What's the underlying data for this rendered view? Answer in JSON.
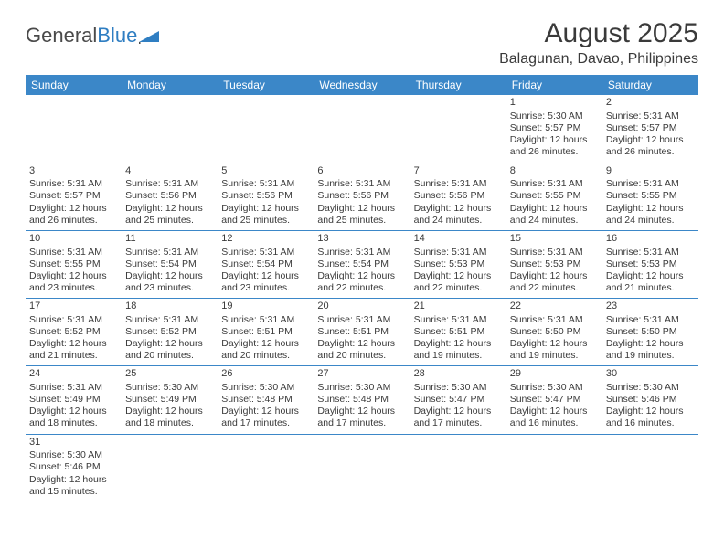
{
  "logo": {
    "general": "General",
    "blue": "Blue"
  },
  "header": {
    "month_title": "August 2025",
    "location": "Balagunan, Davao, Philippines"
  },
  "day_headers": [
    "Sunday",
    "Monday",
    "Tuesday",
    "Wednesday",
    "Thursday",
    "Friday",
    "Saturday"
  ],
  "header_bg": "#3b87c8",
  "header_fg": "#ffffff",
  "rule_color": "#3b87c8",
  "weeks": [
    [
      null,
      null,
      null,
      null,
      null,
      {
        "n": "1",
        "sr": "Sunrise: 5:30 AM",
        "ss": "Sunset: 5:57 PM",
        "d1": "Daylight: 12 hours",
        "d2": "and 26 minutes."
      },
      {
        "n": "2",
        "sr": "Sunrise: 5:31 AM",
        "ss": "Sunset: 5:57 PM",
        "d1": "Daylight: 12 hours",
        "d2": "and 26 minutes."
      }
    ],
    [
      {
        "n": "3",
        "sr": "Sunrise: 5:31 AM",
        "ss": "Sunset: 5:57 PM",
        "d1": "Daylight: 12 hours",
        "d2": "and 26 minutes."
      },
      {
        "n": "4",
        "sr": "Sunrise: 5:31 AM",
        "ss": "Sunset: 5:56 PM",
        "d1": "Daylight: 12 hours",
        "d2": "and 25 minutes."
      },
      {
        "n": "5",
        "sr": "Sunrise: 5:31 AM",
        "ss": "Sunset: 5:56 PM",
        "d1": "Daylight: 12 hours",
        "d2": "and 25 minutes."
      },
      {
        "n": "6",
        "sr": "Sunrise: 5:31 AM",
        "ss": "Sunset: 5:56 PM",
        "d1": "Daylight: 12 hours",
        "d2": "and 25 minutes."
      },
      {
        "n": "7",
        "sr": "Sunrise: 5:31 AM",
        "ss": "Sunset: 5:56 PM",
        "d1": "Daylight: 12 hours",
        "d2": "and 24 minutes."
      },
      {
        "n": "8",
        "sr": "Sunrise: 5:31 AM",
        "ss": "Sunset: 5:55 PM",
        "d1": "Daylight: 12 hours",
        "d2": "and 24 minutes."
      },
      {
        "n": "9",
        "sr": "Sunrise: 5:31 AM",
        "ss": "Sunset: 5:55 PM",
        "d1": "Daylight: 12 hours",
        "d2": "and 24 minutes."
      }
    ],
    [
      {
        "n": "10",
        "sr": "Sunrise: 5:31 AM",
        "ss": "Sunset: 5:55 PM",
        "d1": "Daylight: 12 hours",
        "d2": "and 23 minutes."
      },
      {
        "n": "11",
        "sr": "Sunrise: 5:31 AM",
        "ss": "Sunset: 5:54 PM",
        "d1": "Daylight: 12 hours",
        "d2": "and 23 minutes."
      },
      {
        "n": "12",
        "sr": "Sunrise: 5:31 AM",
        "ss": "Sunset: 5:54 PM",
        "d1": "Daylight: 12 hours",
        "d2": "and 23 minutes."
      },
      {
        "n": "13",
        "sr": "Sunrise: 5:31 AM",
        "ss": "Sunset: 5:54 PM",
        "d1": "Daylight: 12 hours",
        "d2": "and 22 minutes."
      },
      {
        "n": "14",
        "sr": "Sunrise: 5:31 AM",
        "ss": "Sunset: 5:53 PM",
        "d1": "Daylight: 12 hours",
        "d2": "and 22 minutes."
      },
      {
        "n": "15",
        "sr": "Sunrise: 5:31 AM",
        "ss": "Sunset: 5:53 PM",
        "d1": "Daylight: 12 hours",
        "d2": "and 22 minutes."
      },
      {
        "n": "16",
        "sr": "Sunrise: 5:31 AM",
        "ss": "Sunset: 5:53 PM",
        "d1": "Daylight: 12 hours",
        "d2": "and 21 minutes."
      }
    ],
    [
      {
        "n": "17",
        "sr": "Sunrise: 5:31 AM",
        "ss": "Sunset: 5:52 PM",
        "d1": "Daylight: 12 hours",
        "d2": "and 21 minutes."
      },
      {
        "n": "18",
        "sr": "Sunrise: 5:31 AM",
        "ss": "Sunset: 5:52 PM",
        "d1": "Daylight: 12 hours",
        "d2": "and 20 minutes."
      },
      {
        "n": "19",
        "sr": "Sunrise: 5:31 AM",
        "ss": "Sunset: 5:51 PM",
        "d1": "Daylight: 12 hours",
        "d2": "and 20 minutes."
      },
      {
        "n": "20",
        "sr": "Sunrise: 5:31 AM",
        "ss": "Sunset: 5:51 PM",
        "d1": "Daylight: 12 hours",
        "d2": "and 20 minutes."
      },
      {
        "n": "21",
        "sr": "Sunrise: 5:31 AM",
        "ss": "Sunset: 5:51 PM",
        "d1": "Daylight: 12 hours",
        "d2": "and 19 minutes."
      },
      {
        "n": "22",
        "sr": "Sunrise: 5:31 AM",
        "ss": "Sunset: 5:50 PM",
        "d1": "Daylight: 12 hours",
        "d2": "and 19 minutes."
      },
      {
        "n": "23",
        "sr": "Sunrise: 5:31 AM",
        "ss": "Sunset: 5:50 PM",
        "d1": "Daylight: 12 hours",
        "d2": "and 19 minutes."
      }
    ],
    [
      {
        "n": "24",
        "sr": "Sunrise: 5:31 AM",
        "ss": "Sunset: 5:49 PM",
        "d1": "Daylight: 12 hours",
        "d2": "and 18 minutes."
      },
      {
        "n": "25",
        "sr": "Sunrise: 5:30 AM",
        "ss": "Sunset: 5:49 PM",
        "d1": "Daylight: 12 hours",
        "d2": "and 18 minutes."
      },
      {
        "n": "26",
        "sr": "Sunrise: 5:30 AM",
        "ss": "Sunset: 5:48 PM",
        "d1": "Daylight: 12 hours",
        "d2": "and 17 minutes."
      },
      {
        "n": "27",
        "sr": "Sunrise: 5:30 AM",
        "ss": "Sunset: 5:48 PM",
        "d1": "Daylight: 12 hours",
        "d2": "and 17 minutes."
      },
      {
        "n": "28",
        "sr": "Sunrise: 5:30 AM",
        "ss": "Sunset: 5:47 PM",
        "d1": "Daylight: 12 hours",
        "d2": "and 17 minutes."
      },
      {
        "n": "29",
        "sr": "Sunrise: 5:30 AM",
        "ss": "Sunset: 5:47 PM",
        "d1": "Daylight: 12 hours",
        "d2": "and 16 minutes."
      },
      {
        "n": "30",
        "sr": "Sunrise: 5:30 AM",
        "ss": "Sunset: 5:46 PM",
        "d1": "Daylight: 12 hours",
        "d2": "and 16 minutes."
      }
    ],
    [
      {
        "n": "31",
        "sr": "Sunrise: 5:30 AM",
        "ss": "Sunset: 5:46 PM",
        "d1": "Daylight: 12 hours",
        "d2": "and 15 minutes."
      },
      null,
      null,
      null,
      null,
      null,
      null
    ]
  ]
}
